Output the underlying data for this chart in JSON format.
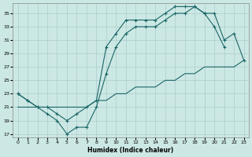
{
  "xlabel": "Humidex (Indice chaleur)",
  "background_color": "#cce8e4",
  "grid_color": "#aacccc",
  "line_color": "#1a6666",
  "x_ticks": [
    0,
    1,
    2,
    3,
    4,
    5,
    6,
    7,
    8,
    9,
    10,
    11,
    12,
    13,
    14,
    15,
    16,
    17,
    18,
    19,
    20,
    21,
    22,
    23
  ],
  "y_ticks": [
    17,
    19,
    21,
    23,
    25,
    27,
    29,
    31,
    33,
    35
  ],
  "ylim": [
    16.5,
    36.5
  ],
  "xlim": [
    -0.5,
    23.5
  ],
  "line1_x": [
    0,
    1,
    2,
    3,
    4,
    5,
    6,
    7,
    8,
    9,
    10,
    11,
    12,
    13,
    14,
    15,
    16,
    17,
    18,
    19,
    20,
    21
  ],
  "line1_y": [
    23,
    22,
    21,
    20,
    19,
    17,
    18,
    18,
    21,
    26,
    30,
    32,
    33,
    33,
    33,
    34,
    35,
    35,
    36,
    35,
    33,
    30
  ],
  "line2_x": [
    0,
    1,
    2,
    3,
    4,
    5,
    6,
    7,
    8,
    9,
    10,
    11,
    12,
    13,
    14,
    15,
    16,
    17,
    18,
    19,
    20,
    21,
    22,
    23
  ],
  "line2_y": [
    21,
    21,
    21,
    21,
    21,
    21,
    21,
    21,
    22,
    22,
    23,
    23,
    24,
    24,
    24,
    25,
    25,
    26,
    26,
    27,
    27,
    27,
    27,
    28
  ],
  "line3_x": [
    0,
    1,
    2,
    3,
    4,
    5,
    6,
    7,
    8,
    9,
    10,
    11,
    12,
    13,
    14,
    15,
    16,
    17,
    18,
    19,
    20,
    21,
    22,
    23
  ],
  "line3_y": [
    23,
    22,
    21,
    21,
    20,
    19,
    20,
    21,
    22,
    30,
    32,
    34,
    34,
    34,
    34,
    35,
    36,
    36,
    36,
    35,
    35,
    31,
    32,
    28
  ]
}
